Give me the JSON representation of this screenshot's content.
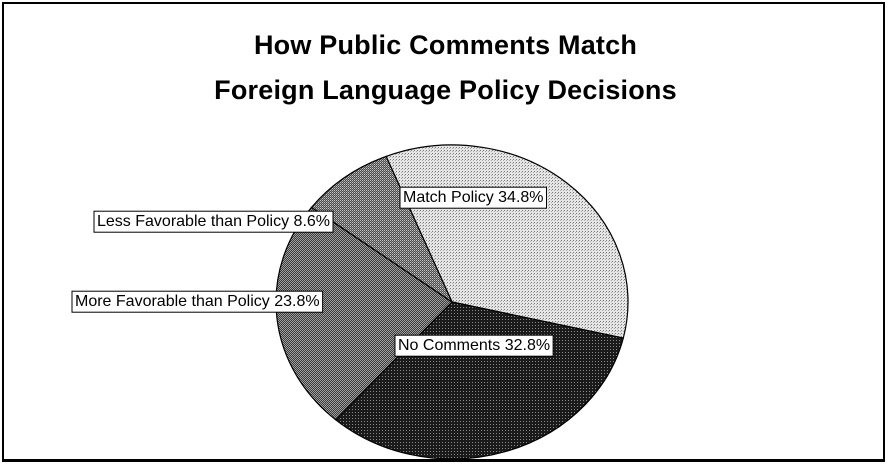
{
  "chart_data": {
    "type": "pie",
    "title_line1": "How Public Comments Match",
    "title_line2": "Foreign Language Policy Decisions",
    "slices": [
      {
        "label": "Match Policy 34.8%",
        "value": 34.8
      },
      {
        "label": "No Comments 32.8%",
        "value": 32.8
      },
      {
        "label": "More Favorable than Policy 23.8%",
        "value": 23.8
      },
      {
        "label": "Less Favorable than Policy 8.6%",
        "value": 8.6
      }
    ]
  }
}
